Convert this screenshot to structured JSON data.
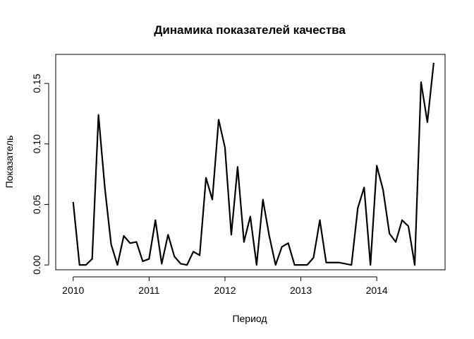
{
  "chart_data": {
    "type": "line",
    "title": "Динамика показателей качества",
    "xlabel": "Период",
    "ylabel": "Показатель",
    "xlim": [
      2009.77,
      2014.9
    ],
    "ylim": [
      -0.004,
      0.174
    ],
    "x_ticks": [
      2010,
      2011,
      2012,
      2013,
      2014
    ],
    "x_tick_labels": [
      "2010",
      "2011",
      "2012",
      "2013",
      "2014"
    ],
    "y_ticks": [
      0.0,
      0.05,
      0.1,
      0.15
    ],
    "y_tick_labels": [
      "0.00",
      "0.05",
      "0.10",
      "0.15"
    ],
    "grid": false,
    "line_color": "#000000",
    "series": [
      {
        "x_start": 2010,
        "frequency": 12,
        "values": [
          0.052,
          0.0,
          0.0,
          0.005,
          0.124,
          0.064,
          0.017,
          0.0,
          0.024,
          0.018,
          0.019,
          0.003,
          0.005,
          0.037,
          0.001,
          0.025,
          0.007,
          0.001,
          0.0,
          0.011,
          0.008,
          0.072,
          0.054,
          0.12,
          0.097,
          0.025,
          0.081,
          0.019,
          0.04,
          0.0,
          0.054,
          0.024,
          0.0,
          0.015,
          0.018,
          0.0,
          0.0,
          0.0,
          0.006,
          0.037,
          0.002,
          0.002,
          0.002,
          0.001,
          0.0,
          0.047,
          0.064,
          0.0,
          0.082,
          0.062,
          0.026,
          0.019,
          0.037,
          0.032,
          0.0,
          0.151,
          0.118,
          0.167
        ]
      }
    ]
  }
}
